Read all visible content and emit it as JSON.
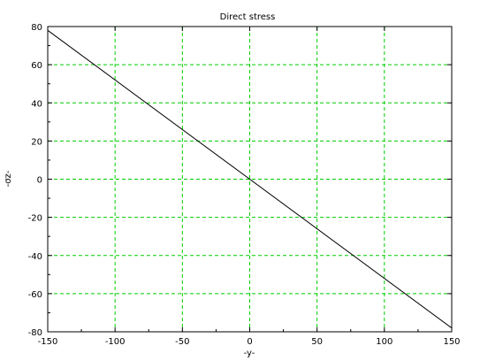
{
  "chart_data": {
    "type": "line",
    "title": "Direct stress",
    "xlabel": "-y-",
    "ylabel": "-σz-",
    "xlim": [
      -150,
      150
    ],
    "ylim": [
      -80,
      80
    ],
    "x_ticks": [
      -150,
      -100,
      -50,
      0,
      50,
      100,
      150
    ],
    "y_ticks": [
      -80,
      -60,
      -40,
      -20,
      0,
      20,
      40,
      60,
      80
    ],
    "grid": true,
    "grid_color": "#00cc00",
    "line_color": "#000000",
    "series": [
      {
        "x": [
          -150,
          150
        ],
        "y": [
          78,
          -78
        ]
      }
    ]
  }
}
